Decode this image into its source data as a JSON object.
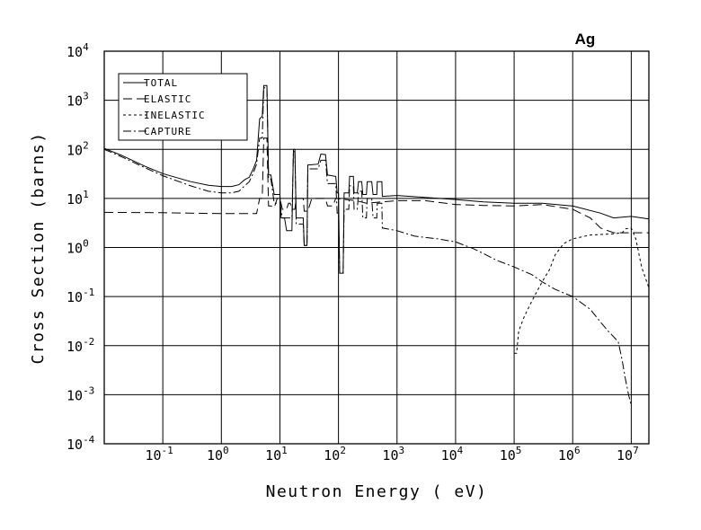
{
  "chart_data": {
    "type": "line",
    "title": "Ag",
    "xlabel": "Neutron Energy ( eV)",
    "ylabel": "Cross Section (barns)",
    "x_scale": "log",
    "y_scale": "log",
    "xlim": [
      0.01,
      20000000
    ],
    "ylim": [
      0.0001,
      10000
    ],
    "grid": true,
    "legend_position": "top-left",
    "x_ticks": [
      {
        "value": 0.1,
        "base": "10",
        "exp": "-1"
      },
      {
        "value": 1,
        "base": "10",
        "exp": "0"
      },
      {
        "value": 10,
        "base": "10",
        "exp": "1"
      },
      {
        "value": 100,
        "base": "10",
        "exp": "2"
      },
      {
        "value": 1000,
        "base": "10",
        "exp": "3"
      },
      {
        "value": 10000,
        "base": "10",
        "exp": "4"
      },
      {
        "value": 100000,
        "base": "10",
        "exp": "5"
      },
      {
        "value": 1000000,
        "base": "10",
        "exp": "6"
      },
      {
        "value": 10000000,
        "base": "10",
        "exp": "7"
      }
    ],
    "y_ticks": [
      {
        "value": 10000,
        "base": "10",
        "exp": "4"
      },
      {
        "value": 1000,
        "base": "10",
        "exp": "3"
      },
      {
        "value": 100,
        "base": "10",
        "exp": "2"
      },
      {
        "value": 10,
        "base": "10",
        "exp": "1"
      },
      {
        "value": 1,
        "base": "10",
        "exp": "0"
      },
      {
        "value": 0.1,
        "base": "10",
        "exp": "-1"
      },
      {
        "value": 0.01,
        "base": "10",
        "exp": "-2"
      },
      {
        "value": 0.001,
        "base": "10",
        "exp": "-3"
      },
      {
        "value": 0.0001,
        "base": "10",
        "exp": "-4"
      }
    ],
    "series": [
      {
        "name": "TOTAL",
        "dash": "",
        "points": [
          [
            0.01,
            105
          ],
          [
            0.02,
            75
          ],
          [
            0.05,
            45
          ],
          [
            0.1,
            32
          ],
          [
            0.3,
            22
          ],
          [
            0.6,
            18.5
          ],
          [
            1,
            17.5
          ],
          [
            1.5,
            17.5
          ],
          [
            2,
            19
          ],
          [
            2.5,
            24
          ],
          [
            3,
            27
          ],
          [
            3.5,
            40
          ],
          [
            4,
            60
          ],
          [
            4.5,
            420
          ],
          [
            5,
            470
          ],
          [
            5.3,
            2000
          ],
          [
            6,
            2000
          ],
          [
            6.4,
            30
          ],
          [
            7,
            30
          ],
          [
            8,
            12
          ],
          [
            10,
            12
          ],
          [
            10.5,
            4
          ],
          [
            12,
            4
          ],
          [
            13,
            2.2
          ],
          [
            16,
            2.2
          ],
          [
            17,
            100
          ],
          [
            18,
            100
          ],
          [
            19,
            4
          ],
          [
            25,
            4
          ],
          [
            26,
            1.1
          ],
          [
            29,
            1.1
          ],
          [
            30,
            48
          ],
          [
            45,
            50
          ],
          [
            50,
            80
          ],
          [
            60,
            78
          ],
          [
            65,
            30
          ],
          [
            90,
            28
          ],
          [
            95,
            13
          ],
          [
            100,
            13
          ],
          [
            105,
            0.3
          ],
          [
            120,
            0.3
          ],
          [
            125,
            13
          ],
          [
            150,
            13
          ],
          [
            155,
            28
          ],
          [
            180,
            28
          ],
          [
            185,
            13
          ],
          [
            210,
            13
          ],
          [
            220,
            22
          ],
          [
            250,
            22
          ],
          [
            260,
            12
          ],
          [
            300,
            12
          ],
          [
            310,
            22
          ],
          [
            370,
            22
          ],
          [
            390,
            12
          ],
          [
            450,
            12
          ],
          [
            460,
            22
          ],
          [
            550,
            22
          ],
          [
            560,
            11
          ],
          [
            1000,
            11.5
          ],
          [
            3000,
            10.5
          ],
          [
            10000,
            9.5
          ],
          [
            30000,
            8.5
          ],
          [
            100000,
            8
          ],
          [
            300000,
            8
          ],
          [
            1000000,
            7
          ],
          [
            3000000,
            5
          ],
          [
            5000000,
            4
          ],
          [
            10000000,
            4.3
          ],
          [
            20000000,
            3.8
          ]
        ]
      },
      {
        "name": "ELASTIC",
        "dash": "10,5",
        "points": [
          [
            0.01,
            5.2
          ],
          [
            0.1,
            5.1
          ],
          [
            1,
            4.9
          ],
          [
            3,
            4.9
          ],
          [
            4,
            4.9
          ],
          [
            4.5,
            10
          ],
          [
            5,
            10
          ],
          [
            5.3,
            170
          ],
          [
            6,
            170
          ],
          [
            6.4,
            7
          ],
          [
            7,
            7
          ],
          [
            8,
            6.5
          ],
          [
            9,
            10
          ],
          [
            10,
            10
          ],
          [
            11,
            6
          ],
          [
            13,
            6
          ],
          [
            14,
            8
          ],
          [
            15,
            8
          ],
          [
            16,
            6
          ],
          [
            18,
            6
          ],
          [
            19,
            10
          ],
          [
            25,
            10
          ],
          [
            26,
            5.5
          ],
          [
            30,
            5.5
          ],
          [
            35,
            10
          ],
          [
            60,
            10
          ],
          [
            65,
            7
          ],
          [
            80,
            7
          ],
          [
            90,
            10
          ],
          [
            200,
            9
          ],
          [
            300,
            8
          ],
          [
            1000,
            9
          ],
          [
            3000,
            9
          ],
          [
            10000,
            7.5
          ],
          [
            30000,
            7.2
          ],
          [
            100000,
            7
          ],
          [
            300000,
            7.5
          ],
          [
            1000000,
            6
          ],
          [
            2000000,
            4
          ],
          [
            3000000,
            2.5
          ],
          [
            5000000,
            2
          ],
          [
            10000000,
            2
          ],
          [
            20000000,
            2
          ]
        ]
      },
      {
        "name": "INELASTIC",
        "dash": "3,3",
        "points": [
          [
            100000,
            0.007
          ],
          [
            110000,
            0.007
          ],
          [
            120000,
            0.02
          ],
          [
            150000,
            0.04
          ],
          [
            200000,
            0.08
          ],
          [
            300000,
            0.2
          ],
          [
            400000,
            0.35
          ],
          [
            500000,
            0.7
          ],
          [
            700000,
            1.2
          ],
          [
            1000000,
            1.5
          ],
          [
            2000000,
            1.8
          ],
          [
            5000000,
            1.9
          ],
          [
            7000000,
            2
          ],
          [
            8000000,
            2.4
          ],
          [
            10000000,
            2.5
          ],
          [
            12000000,
            1.5
          ],
          [
            15000000,
            0.4
          ],
          [
            20000000,
            0.15
          ]
        ]
      },
      {
        "name": "CAPTURE",
        "dash": "9,3,2,3",
        "points": [
          [
            0.01,
            100
          ],
          [
            0.02,
            70
          ],
          [
            0.05,
            42
          ],
          [
            0.1,
            29
          ],
          [
            0.3,
            18
          ],
          [
            0.6,
            14
          ],
          [
            1,
            13
          ],
          [
            1.5,
            13
          ],
          [
            2,
            14
          ],
          [
            2.5,
            18
          ],
          [
            3,
            22
          ],
          [
            3.5,
            33
          ],
          [
            4,
            50
          ],
          [
            4.5,
            170
          ],
          [
            5,
            170
          ],
          [
            5.3,
            1800
          ],
          [
            6,
            1800
          ],
          [
            6.4,
            25
          ],
          [
            7,
            25
          ],
          [
            8,
            8
          ],
          [
            10,
            8
          ],
          [
            11,
            4
          ],
          [
            14,
            4
          ],
          [
            16,
            4
          ],
          [
            17,
            90
          ],
          [
            18,
            90
          ],
          [
            19,
            3
          ],
          [
            25,
            3
          ],
          [
            26,
            1.1
          ],
          [
            29,
            1.1
          ],
          [
            30,
            40
          ],
          [
            45,
            40
          ],
          [
            50,
            60
          ],
          [
            60,
            60
          ],
          [
            65,
            20
          ],
          [
            90,
            20
          ],
          [
            95,
            5
          ],
          [
            100,
            5
          ],
          [
            105,
            0.3
          ],
          [
            120,
            0.3
          ],
          [
            125,
            6
          ],
          [
            150,
            6
          ],
          [
            155,
            18
          ],
          [
            180,
            18
          ],
          [
            185,
            6
          ],
          [
            210,
            6
          ],
          [
            220,
            14
          ],
          [
            250,
            14
          ],
          [
            260,
            4
          ],
          [
            300,
            4
          ],
          [
            310,
            10
          ],
          [
            370,
            10
          ],
          [
            390,
            4
          ],
          [
            450,
            4
          ],
          [
            460,
            8
          ],
          [
            550,
            8
          ],
          [
            560,
            2.5
          ],
          [
            1000,
            2.2
          ],
          [
            2000,
            1.7
          ],
          [
            3000,
            1.6
          ],
          [
            5000,
            1.5
          ],
          [
            10000,
            1.3
          ],
          [
            20000,
            0.95
          ],
          [
            30000,
            0.75
          ],
          [
            50000,
            0.55
          ],
          [
            100000,
            0.4
          ],
          [
            200000,
            0.28
          ],
          [
            300000,
            0.2
          ],
          [
            500000,
            0.14
          ],
          [
            1000000,
            0.1
          ],
          [
            2000000,
            0.055
          ],
          [
            3000000,
            0.03
          ],
          [
            4000000,
            0.02
          ],
          [
            6000000,
            0.012
          ],
          [
            7000000,
            0.005
          ],
          [
            8000000,
            0.002
          ],
          [
            9000000,
            0.001
          ],
          [
            10000000,
            0.0006
          ]
        ]
      }
    ]
  }
}
